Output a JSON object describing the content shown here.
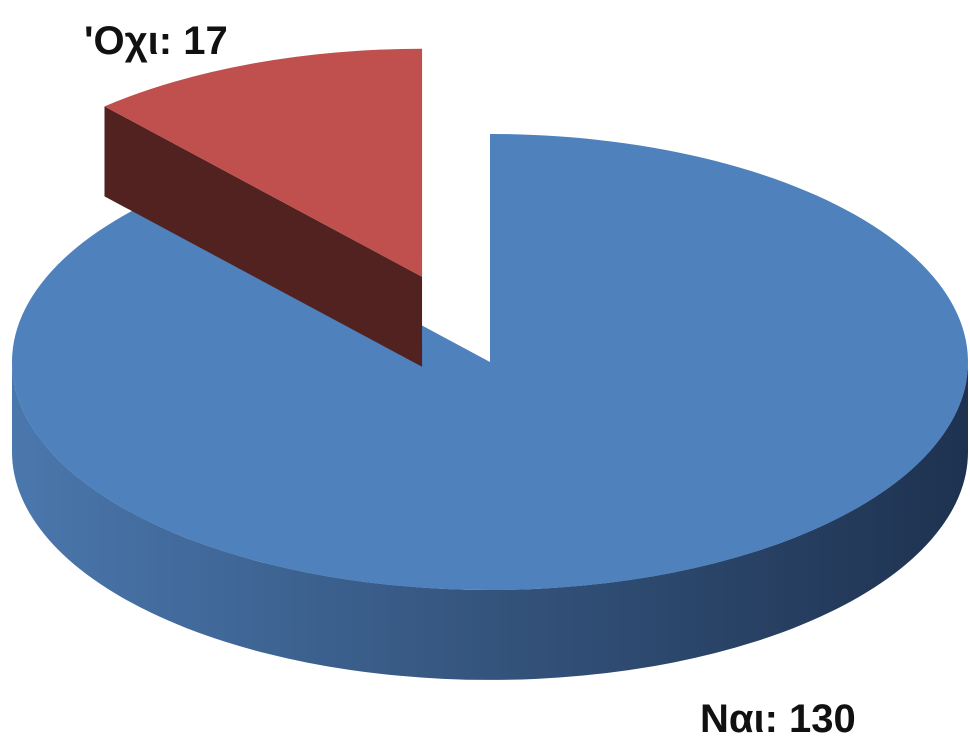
{
  "chart_data": {
    "type": "pie",
    "values": [
      130,
      17
    ],
    "value_labels": [
      "Ναι: 130",
      "'Οχι: 17"
    ],
    "colors": [
      "#4f81bd",
      "#c0504d"
    ],
    "explode": [
      0,
      1
    ]
  }
}
